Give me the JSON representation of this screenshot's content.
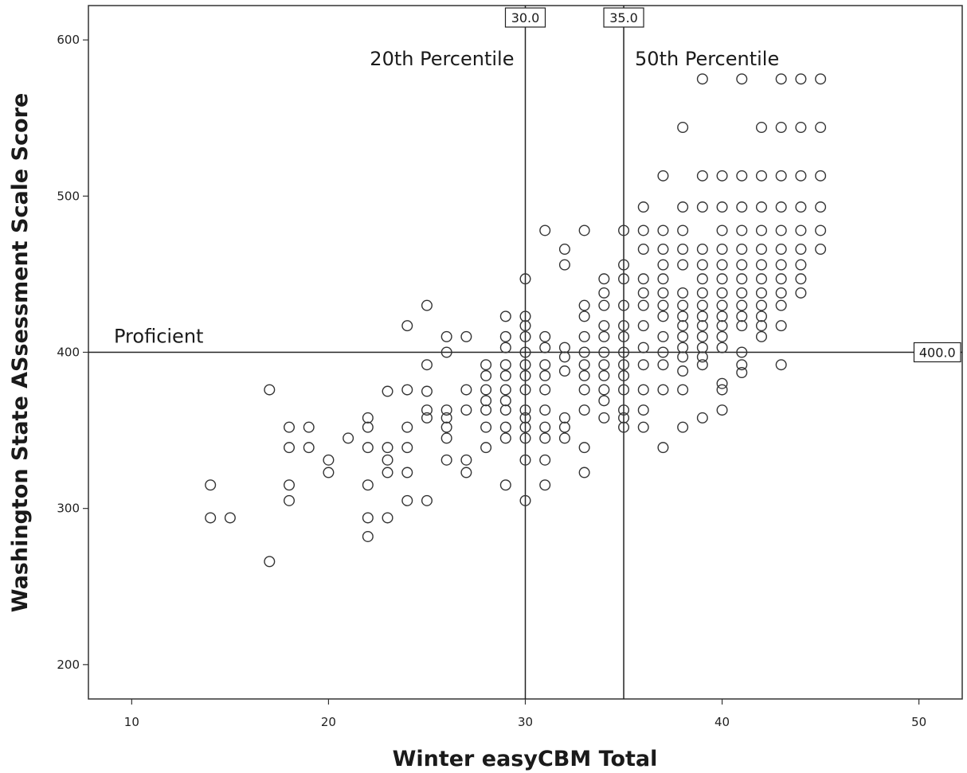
{
  "chart_data": {
    "type": "scatter",
    "xlabel": "Winter easyCBM Total",
    "ylabel": "Washington State ASsessment Scale Score",
    "xlim": [
      7.8,
      52.2
    ],
    "ylim": [
      178,
      622
    ],
    "xticks": [
      10,
      20,
      30,
      40,
      50
    ],
    "yticks": [
      200,
      300,
      400,
      500,
      600
    ],
    "grid": false,
    "marker": "open-circle",
    "reference_lines": [
      {
        "axis": "x",
        "value": 30,
        "value_label": "30.0",
        "label": "20th Percentile"
      },
      {
        "axis": "x",
        "value": 35,
        "value_label": "35.0",
        "label": "50th Percentile"
      },
      {
        "axis": "y",
        "value": 400,
        "value_label": "400.0",
        "label": "Proficient"
      }
    ],
    "points": [
      [
        14,
        315
      ],
      [
        14,
        294
      ],
      [
        15,
        294
      ],
      [
        17,
        376
      ],
      [
        17,
        266
      ],
      [
        18,
        352
      ],
      [
        18,
        339
      ],
      [
        18,
        315
      ],
      [
        18,
        305
      ],
      [
        19,
        352
      ],
      [
        19,
        339
      ],
      [
        20,
        331
      ],
      [
        20,
        323
      ],
      [
        21,
        345
      ],
      [
        22,
        358
      ],
      [
        22,
        352
      ],
      [
        22,
        339
      ],
      [
        22,
        315
      ],
      [
        22,
        294
      ],
      [
        22,
        282
      ],
      [
        23,
        375
      ],
      [
        23,
        339
      ],
      [
        23,
        331
      ],
      [
        23,
        323
      ],
      [
        23,
        294
      ],
      [
        24,
        417
      ],
      [
        24,
        376
      ],
      [
        24,
        352
      ],
      [
        24,
        339
      ],
      [
        24,
        323
      ],
      [
        24,
        305
      ],
      [
        25,
        430
      ],
      [
        25,
        392
      ],
      [
        25,
        375
      ],
      [
        25,
        363
      ],
      [
        25,
        358
      ],
      [
        25,
        305
      ],
      [
        26,
        410
      ],
      [
        26,
        400
      ],
      [
        26,
        363
      ],
      [
        26,
        358
      ],
      [
        26,
        352
      ],
      [
        26,
        345
      ],
      [
        26,
        331
      ],
      [
        27,
        410
      ],
      [
        27,
        376
      ],
      [
        27,
        363
      ],
      [
        27,
        331
      ],
      [
        27,
        323
      ],
      [
        28,
        392
      ],
      [
        28,
        385
      ],
      [
        28,
        376
      ],
      [
        28,
        369
      ],
      [
        28,
        363
      ],
      [
        28,
        352
      ],
      [
        28,
        339
      ],
      [
        29,
        423
      ],
      [
        29,
        410
      ],
      [
        29,
        403
      ],
      [
        29,
        392
      ],
      [
        29,
        385
      ],
      [
        29,
        376
      ],
      [
        29,
        369
      ],
      [
        29,
        363
      ],
      [
        29,
        352
      ],
      [
        29,
        345
      ],
      [
        29,
        315
      ],
      [
        30,
        447
      ],
      [
        30,
        423
      ],
      [
        30,
        417
      ],
      [
        30,
        410
      ],
      [
        30,
        400
      ],
      [
        30,
        392
      ],
      [
        30,
        385
      ],
      [
        30,
        376
      ],
      [
        30,
        363
      ],
      [
        30,
        358
      ],
      [
        30,
        352
      ],
      [
        30,
        345
      ],
      [
        30,
        331
      ],
      [
        30,
        305
      ],
      [
        31,
        478
      ],
      [
        31,
        410
      ],
      [
        31,
        403
      ],
      [
        31,
        392
      ],
      [
        31,
        385
      ],
      [
        31,
        376
      ],
      [
        31,
        363
      ],
      [
        31,
        352
      ],
      [
        31,
        345
      ],
      [
        31,
        331
      ],
      [
        31,
        315
      ],
      [
        32,
        466
      ],
      [
        32,
        456
      ],
      [
        32,
        403
      ],
      [
        32,
        397
      ],
      [
        32,
        388
      ],
      [
        32,
        358
      ],
      [
        32,
        352
      ],
      [
        32,
        345
      ],
      [
        33,
        478
      ],
      [
        33,
        430
      ],
      [
        33,
        423
      ],
      [
        33,
        410
      ],
      [
        33,
        400
      ],
      [
        33,
        392
      ],
      [
        33,
        385
      ],
      [
        33,
        376
      ],
      [
        33,
        363
      ],
      [
        33,
        339
      ],
      [
        33,
        323
      ],
      [
        34,
        447
      ],
      [
        34,
        438
      ],
      [
        34,
        430
      ],
      [
        34,
        417
      ],
      [
        34,
        410
      ],
      [
        34,
        400
      ],
      [
        34,
        392
      ],
      [
        34,
        385
      ],
      [
        34,
        376
      ],
      [
        34,
        369
      ],
      [
        34,
        358
      ],
      [
        35,
        478
      ],
      [
        35,
        456
      ],
      [
        35,
        447
      ],
      [
        35,
        430
      ],
      [
        35,
        417
      ],
      [
        35,
        410
      ],
      [
        35,
        400
      ],
      [
        35,
        392
      ],
      [
        35,
        385
      ],
      [
        35,
        376
      ],
      [
        35,
        363
      ],
      [
        35,
        358
      ],
      [
        35,
        352
      ],
      [
        36,
        493
      ],
      [
        36,
        478
      ],
      [
        36,
        466
      ],
      [
        36,
        447
      ],
      [
        36,
        438
      ],
      [
        36,
        430
      ],
      [
        36,
        417
      ],
      [
        36,
        403
      ],
      [
        36,
        392
      ],
      [
        36,
        376
      ],
      [
        36,
        363
      ],
      [
        36,
        352
      ],
      [
        37,
        513
      ],
      [
        37,
        478
      ],
      [
        37,
        466
      ],
      [
        37,
        456
      ],
      [
        37,
        447
      ],
      [
        37,
        438
      ],
      [
        37,
        430
      ],
      [
        37,
        423
      ],
      [
        37,
        410
      ],
      [
        37,
        400
      ],
      [
        37,
        392
      ],
      [
        37,
        376
      ],
      [
        37,
        339
      ],
      [
        38,
        544
      ],
      [
        38,
        493
      ],
      [
        38,
        478
      ],
      [
        38,
        466
      ],
      [
        38,
        456
      ],
      [
        38,
        438
      ],
      [
        38,
        430
      ],
      [
        38,
        423
      ],
      [
        38,
        417
      ],
      [
        38,
        410
      ],
      [
        38,
        403
      ],
      [
        38,
        397
      ],
      [
        38,
        388
      ],
      [
        38,
        376
      ],
      [
        38,
        352
      ],
      [
        39,
        575
      ],
      [
        39,
        513
      ],
      [
        39,
        493
      ],
      [
        39,
        466
      ],
      [
        39,
        456
      ],
      [
        39,
        447
      ],
      [
        39,
        438
      ],
      [
        39,
        430
      ],
      [
        39,
        423
      ],
      [
        39,
        417
      ],
      [
        39,
        410
      ],
      [
        39,
        403
      ],
      [
        39,
        397
      ],
      [
        39,
        392
      ],
      [
        39,
        358
      ],
      [
        40,
        513
      ],
      [
        40,
        493
      ],
      [
        40,
        478
      ],
      [
        40,
        466
      ],
      [
        40,
        456
      ],
      [
        40,
        447
      ],
      [
        40,
        438
      ],
      [
        40,
        430
      ],
      [
        40,
        423
      ],
      [
        40,
        417
      ],
      [
        40,
        410
      ],
      [
        40,
        403
      ],
      [
        40,
        380
      ],
      [
        40,
        376
      ],
      [
        40,
        363
      ],
      [
        41,
        575
      ],
      [
        41,
        513
      ],
      [
        41,
        493
      ],
      [
        41,
        478
      ],
      [
        41,
        466
      ],
      [
        41,
        456
      ],
      [
        41,
        447
      ],
      [
        41,
        438
      ],
      [
        41,
        430
      ],
      [
        41,
        423
      ],
      [
        41,
        417
      ],
      [
        41,
        400
      ],
      [
        41,
        392
      ],
      [
        41,
        387
      ],
      [
        42,
        544
      ],
      [
        42,
        513
      ],
      [
        42,
        493
      ],
      [
        42,
        478
      ],
      [
        42,
        466
      ],
      [
        42,
        456
      ],
      [
        42,
        447
      ],
      [
        42,
        438
      ],
      [
        42,
        430
      ],
      [
        42,
        423
      ],
      [
        42,
        417
      ],
      [
        42,
        410
      ],
      [
        43,
        575
      ],
      [
        43,
        544
      ],
      [
        43,
        513
      ],
      [
        43,
        493
      ],
      [
        43,
        478
      ],
      [
        43,
        466
      ],
      [
        43,
        456
      ],
      [
        43,
        447
      ],
      [
        43,
        438
      ],
      [
        43,
        430
      ],
      [
        43,
        417
      ],
      [
        43,
        392
      ],
      [
        44,
        575
      ],
      [
        44,
        544
      ],
      [
        44,
        513
      ],
      [
        44,
        493
      ],
      [
        44,
        478
      ],
      [
        44,
        466
      ],
      [
        44,
        456
      ],
      [
        44,
        447
      ],
      [
        44,
        438
      ],
      [
        45,
        575
      ],
      [
        45,
        544
      ],
      [
        45,
        513
      ],
      [
        45,
        493
      ],
      [
        45,
        478
      ],
      [
        45,
        466
      ]
    ]
  }
}
